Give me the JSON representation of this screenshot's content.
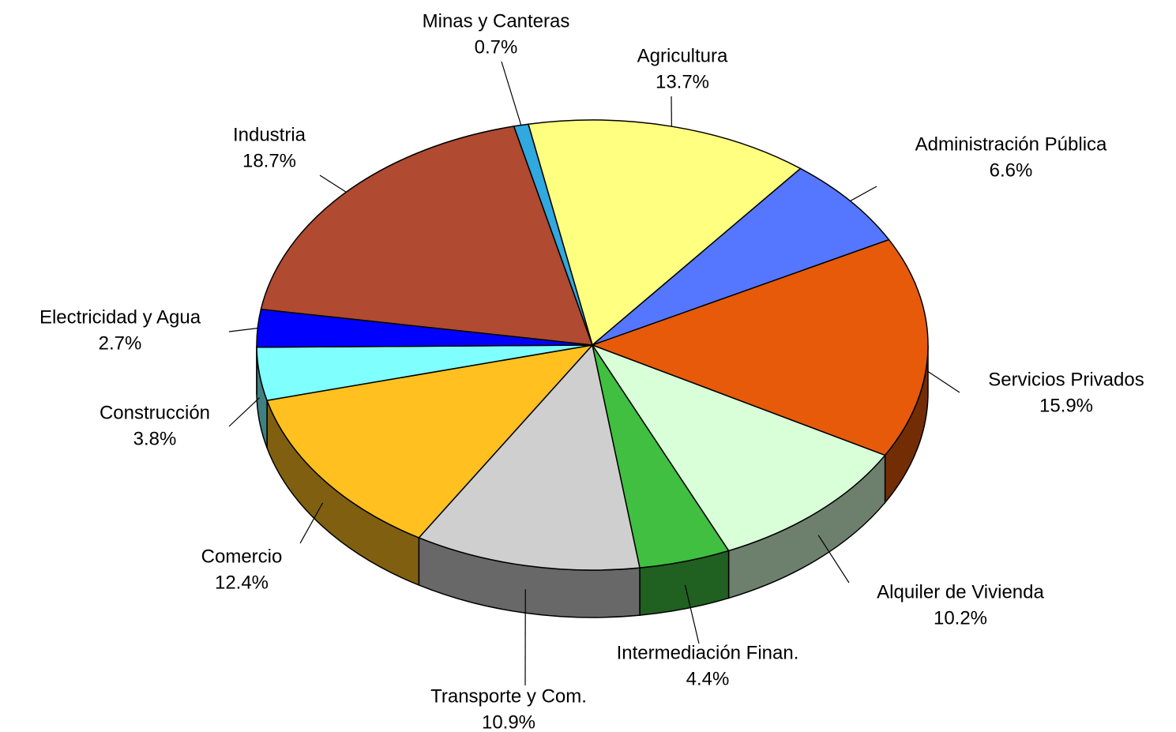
{
  "chart_data": {
    "type": "pie",
    "categories": [
      "Agricultura",
      "Administración Pública",
      "Servicios Privados",
      "Alquiler de Vivienda",
      "Intermediación Finan.",
      "Transporte y Com.",
      "Comercio",
      "Construcción",
      "Electricidad y Agua",
      "Industria",
      "Minas y Canteras"
    ],
    "values": [
      13.7,
      6.6,
      15.9,
      10.2,
      4.4,
      10.9,
      12.4,
      3.8,
      2.7,
      18.7,
      0.7
    ],
    "value_labels": [
      "13.7%",
      "6.6%",
      "15.9%",
      "10.2%",
      "4.4%",
      "10.9%",
      "12.4%",
      "3.8%",
      "2.7%",
      "18.7%",
      "0.7%"
    ],
    "colors": [
      "#FFFF80",
      "#5577FF",
      "#E65A0A",
      "#D9FFD9",
      "#40BF40",
      "#CFCFCF",
      "#FFC020",
      "#80FFFF",
      "#0000FF",
      "#B04A30",
      "#30A8E0"
    ]
  }
}
